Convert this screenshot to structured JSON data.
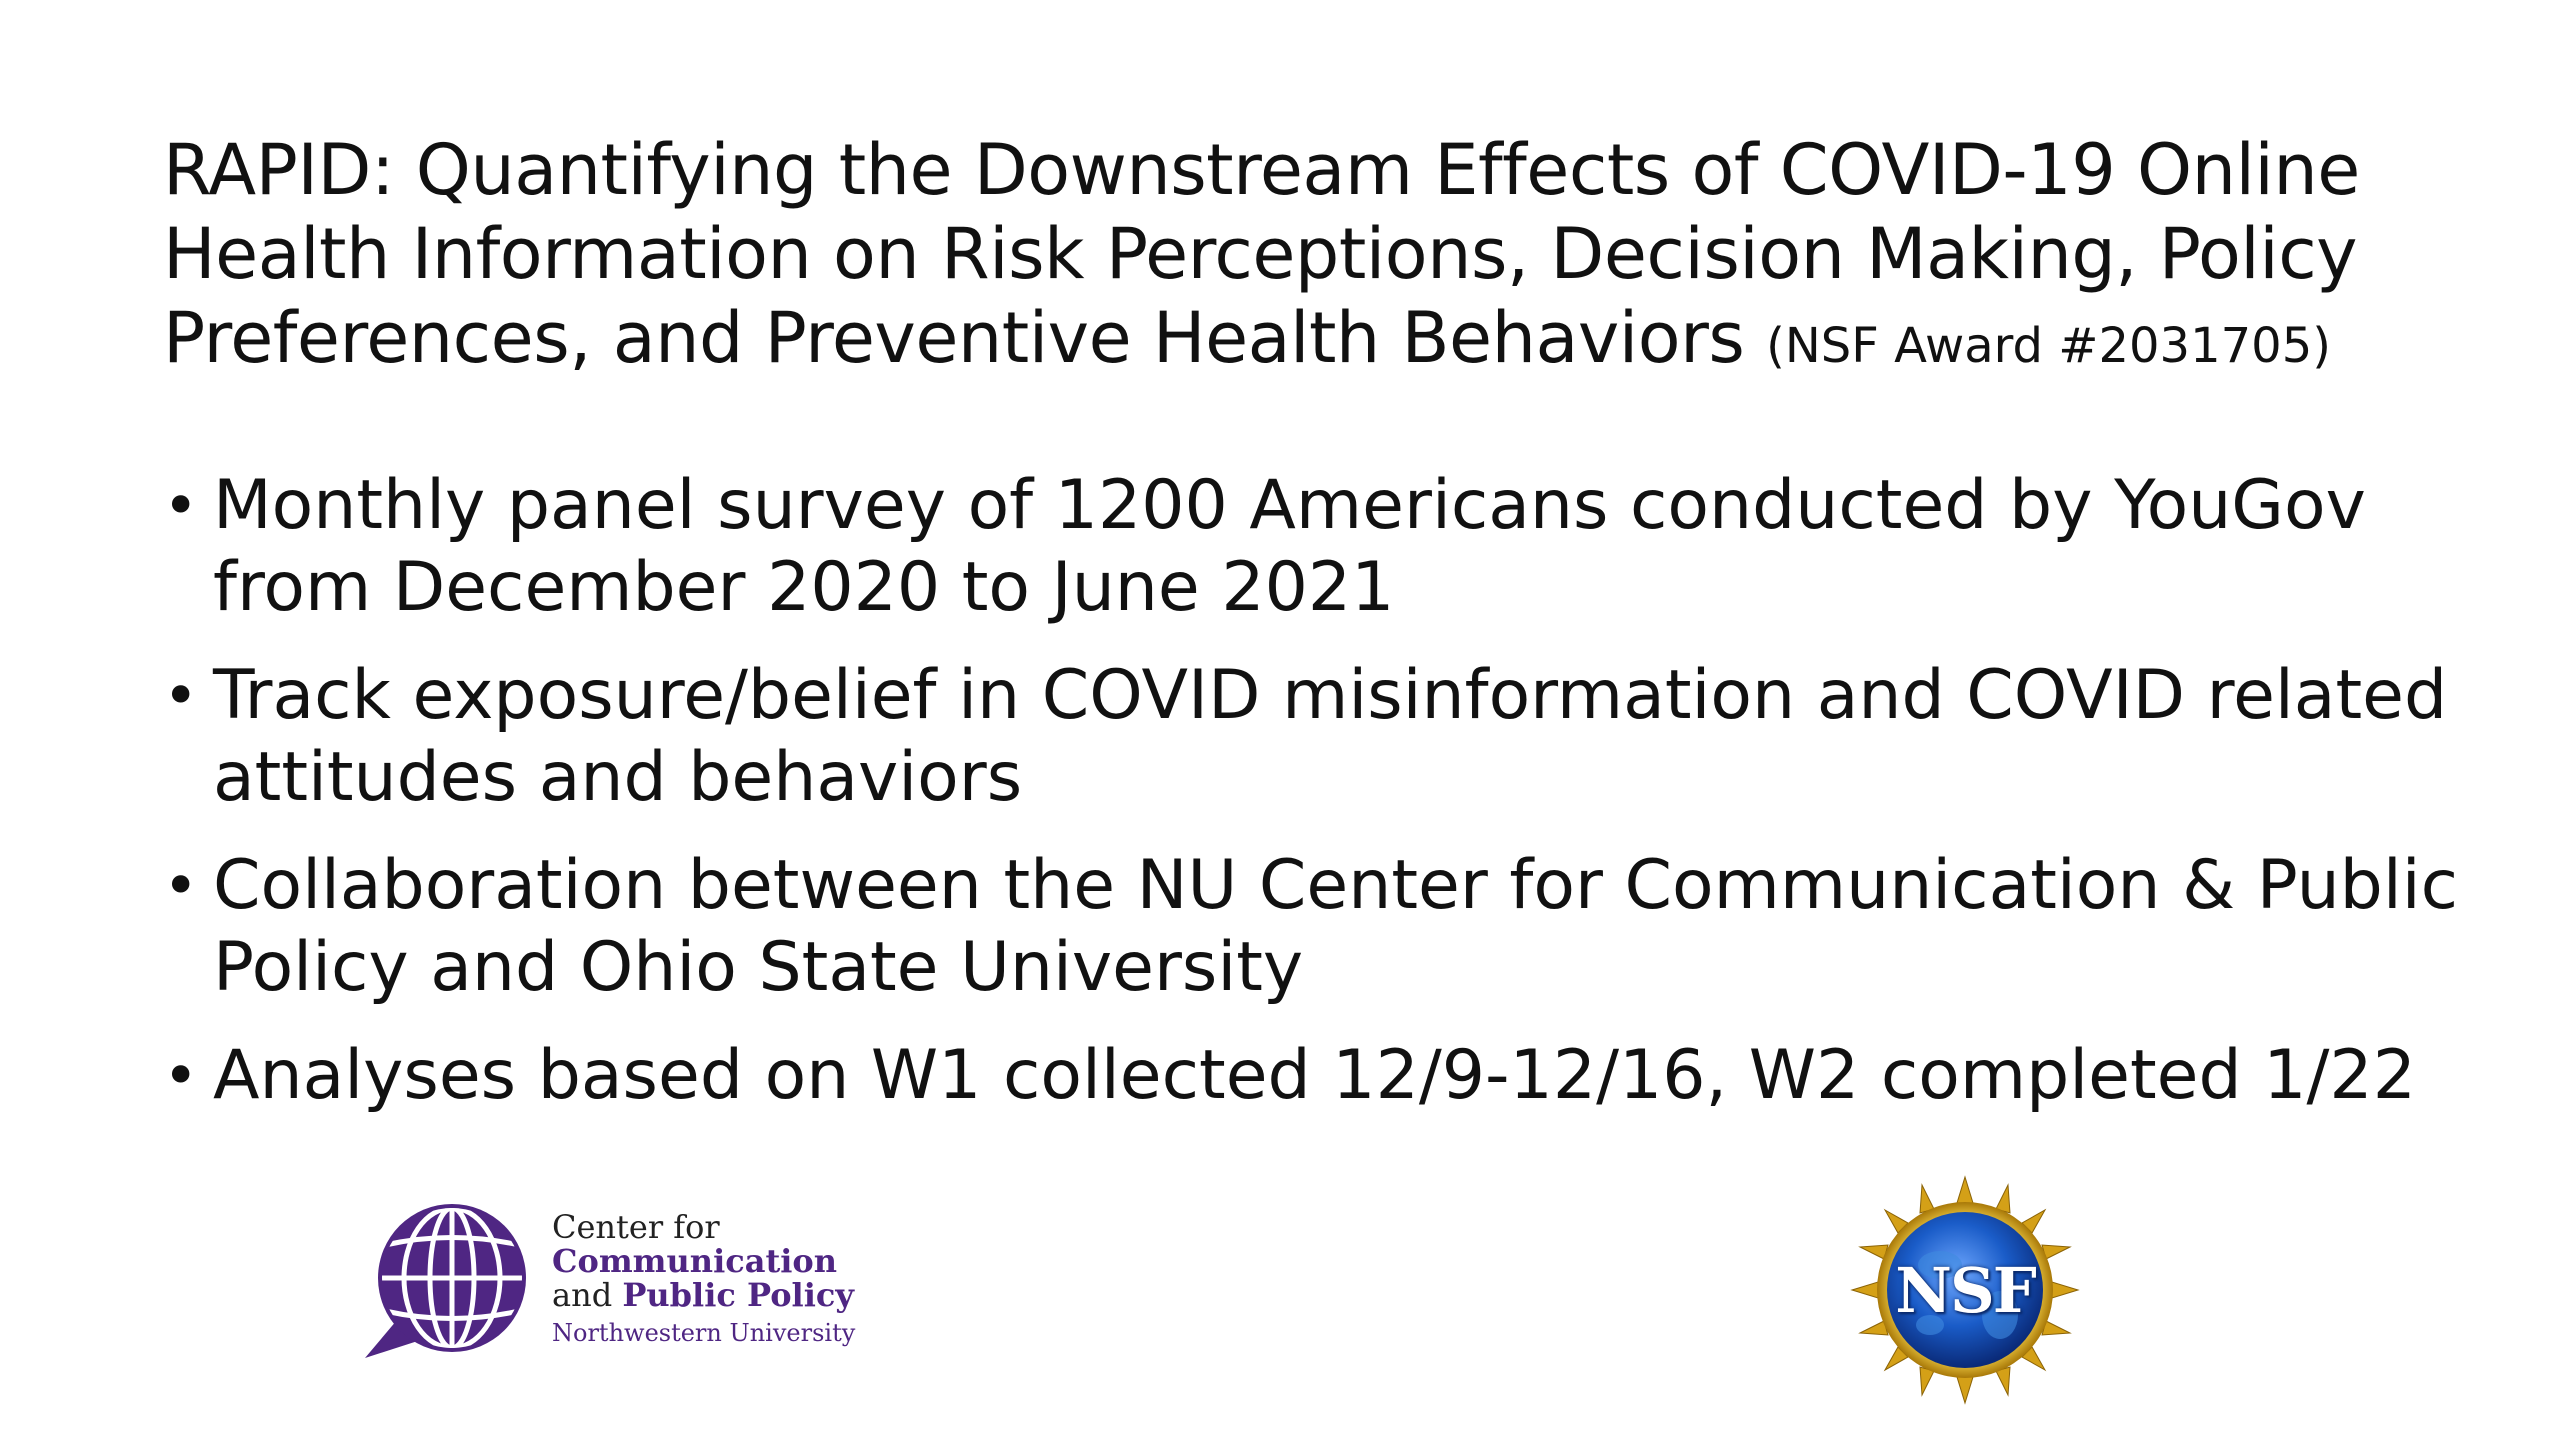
{
  "slide": {
    "title_main": "RAPID: Quantifying the Downstream Effects of COVID-19 Online Health Information on Risk Perceptions, Decision Making, Policy Preferences, and Preventive Health Behaviors",
    "title_award": "(NSF Award #2031705)",
    "bullet_symbol": "•",
    "bullets": [
      "Monthly panel survey of 1200 Americans conducted by YouGov from December 2020 to June 2021",
      "Track exposure/belief in COVID misinformation and COVID related attitudes and behaviors",
      "Collaboration between the NU Center for Communication & Public Policy and Ohio State University",
      "Analyses based on W1 collected 12/9-12/16, W2 completed 1/22"
    ]
  },
  "logos": {
    "ccpp": {
      "line1": "Center for",
      "line2": "Communication",
      "line3_prefix": "and ",
      "line3_bold": "Public Policy",
      "line4": "Northwestern University",
      "color": "#4f2683"
    },
    "nsf": {
      "text": "NSF",
      "globe_color": "#1a5cc8",
      "ring_color": "#d4a017"
    }
  }
}
